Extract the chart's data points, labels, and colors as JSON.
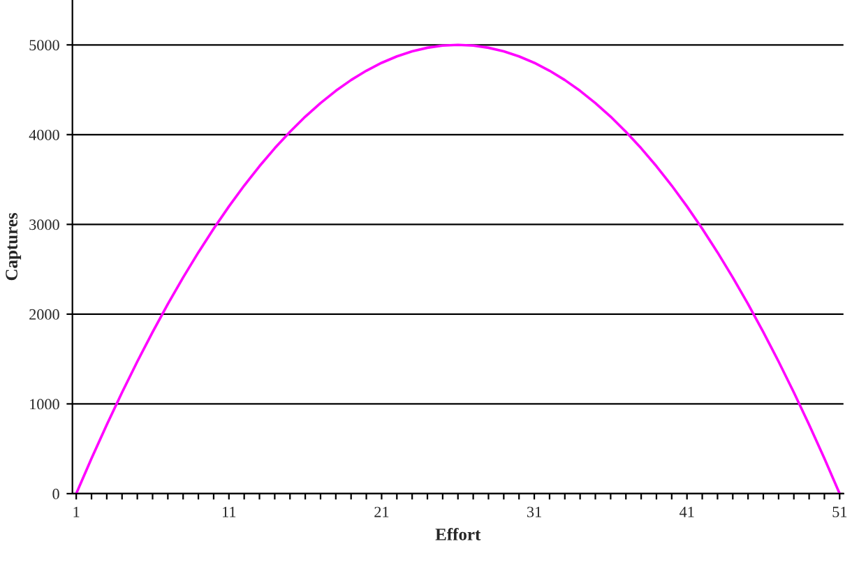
{
  "chart_data": {
    "type": "line",
    "xlabel": "Effort",
    "ylabel": "Captures",
    "categories": [
      "1",
      null,
      null,
      null,
      null,
      null,
      null,
      null,
      null,
      null,
      "11",
      null,
      null,
      null,
      null,
      null,
      null,
      null,
      null,
      null,
      "21",
      null,
      null,
      null,
      null,
      null,
      null,
      null,
      null,
      null,
      "31",
      null,
      null,
      null,
      null,
      null,
      null,
      null,
      null,
      null,
      "41",
      null,
      null,
      null,
      null,
      null,
      null,
      null,
      null,
      null,
      "51"
    ],
    "series": [
      {
        "color": "#ff00ff",
        "values": [
          0,
          392,
          768,
          1128,
          1472,
          1800,
          2112,
          2408,
          2688,
          2952,
          3200,
          3432,
          3648,
          3848,
          4032,
          4200,
          4352,
          4488,
          4608,
          4712,
          4800,
          4872,
          4928,
          4968,
          4992,
          5000,
          4992,
          4968,
          4928,
          4872,
          4800,
          4712,
          4608,
          4488,
          4352,
          4200,
          4032,
          3848,
          3648,
          3432,
          3200,
          2952,
          2688,
          2408,
          2112,
          1800,
          1472,
          1128,
          768,
          392,
          0
        ]
      }
    ],
    "ylim": [
      0,
      5500
    ],
    "yticks": [
      0,
      1000,
      2000,
      3000,
      4000,
      5000
    ],
    "grid": "y",
    "legend": false,
    "marker": "none",
    "line_style": "solid"
  }
}
